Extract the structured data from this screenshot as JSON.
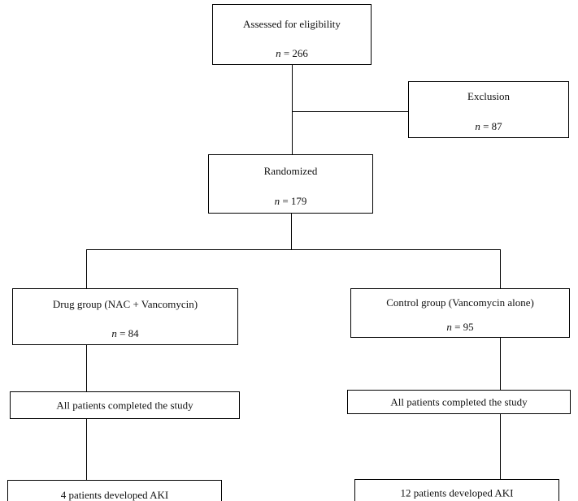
{
  "boxes": {
    "eligibility": {
      "label": "Assessed for eligibility",
      "n_symbol": "n",
      "n_value": "266"
    },
    "exclusion": {
      "label": "Exclusion",
      "n_symbol": "n",
      "n_value": "87"
    },
    "randomized": {
      "label": "Randomized",
      "n_symbol": "n",
      "n_value": "179"
    },
    "drug_group": {
      "label": "Drug group (NAC + Vancomycin)",
      "n_symbol": "n",
      "n_value": "84"
    },
    "control_group": {
      "label": "Control group (Vancomycin alone)",
      "n_symbol": "n",
      "n_value": "95"
    },
    "drug_completed": {
      "label": "All patients completed the study"
    },
    "control_completed": {
      "label": "All patients completed the study"
    },
    "drug_aki": {
      "label": "4 patients developed AKI"
    },
    "control_aki": {
      "label": "12 patients developed AKI"
    }
  }
}
